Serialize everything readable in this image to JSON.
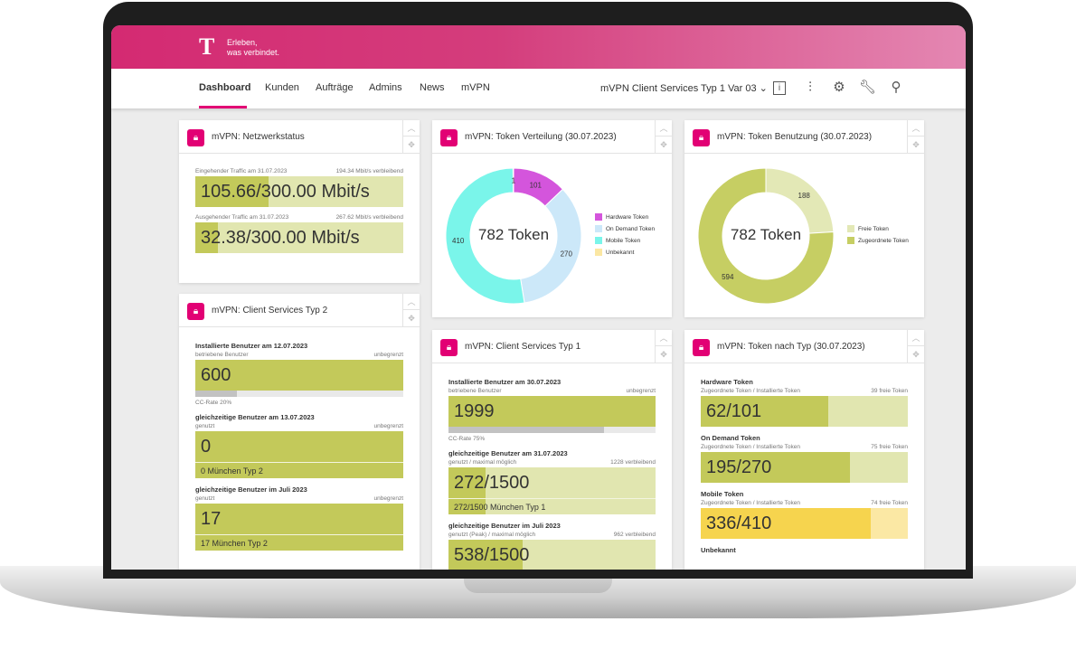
{
  "header": {
    "logo": "T",
    "slogan_line1": "Erleben,",
    "slogan_line2": "was verbindet."
  },
  "nav": {
    "items": [
      "Dashboard",
      "Kunden",
      "Aufträge",
      "Admins",
      "News",
      "mVPN"
    ],
    "active": "Dashboard",
    "selector": "mVPN Client Services Typ 1 Var 03",
    "selector_icon": "chevron-down-icon",
    "icons": [
      "info-icon",
      "sliders-icon",
      "gear-icon",
      "wrench-icon",
      "user-icon"
    ]
  },
  "colors": {
    "brand": "#e20074",
    "bar_dark": "#c3c95a",
    "bar_light": "#e1e6b0",
    "yellow": "#f6d44e"
  },
  "netz": {
    "title": "mVPN: Netzwerkstatus",
    "bars": [
      {
        "title": "",
        "left": "Eingehender Traffic am 31.07.2023",
        "right": "194.34 Mbit/s verbleibend",
        "value": "105.66/300.00 Mbit/s",
        "fraction": 0.352
      },
      {
        "title": "",
        "left": "Ausgehender Traffic am 31.07.2023",
        "right": "267.62 Mbit/s verbleibend",
        "value": "32.38/300.00 Mbit/s",
        "fraction": 0.108
      }
    ]
  },
  "typ2": {
    "title": "mVPN: Client Services Typ 2",
    "bars": [
      {
        "title": "Installierte Benutzer am 12.07.2023",
        "left": "betriebene Benutzer",
        "right": "unbegrenzt",
        "value": "600",
        "fraction": 1,
        "progress": 0.2,
        "note": "CC-Rate 20%"
      },
      {
        "title": "gleichzeitige Benutzer am 13.07.2023",
        "left": "genutzt",
        "right": "unbegrenzt",
        "value": "0",
        "fraction": 1,
        "sub": "0 München Typ 2",
        "sub_fraction": 1
      },
      {
        "title": "gleichzeitige Benutzer im Juli 2023",
        "left": "genutzt",
        "right": "unbegrenzt",
        "value": "17",
        "fraction": 1,
        "sub": "17 München Typ 2",
        "sub_fraction": 1
      }
    ]
  },
  "typ1": {
    "title": "mVPN: Client Services Typ 1",
    "bars": [
      {
        "title": "Installierte Benutzer am 30.07.2023",
        "left": "betriebene Benutzer",
        "right": "unbegrenzt",
        "value": "1999",
        "fraction": 1,
        "progress": 0.75,
        "note": "CC-Rate 75%"
      },
      {
        "title": "gleichzeitige Benutzer am 31.07.2023",
        "left": "genutzt / maximal möglich",
        "right": "1228 verbleibend",
        "value": "272/1500",
        "fraction": 0.181,
        "sub": "272/1500 München Typ 1",
        "sub_fraction": 0.181
      },
      {
        "title": "gleichzeitige Benutzer im Juli 2023",
        "left": "genutzt (Peak) / maximal möglich",
        "right": "962 verbleibend",
        "value": "538/1500",
        "fraction": 0.359
      }
    ]
  },
  "nachtyp": {
    "title": "mVPN: Token nach Typ (30.07.2023)",
    "bars": [
      {
        "title": "Hardware Token",
        "left": "Zugeordnete Token / Installierte Token",
        "right": "39 freie Token",
        "value": "62/101",
        "fraction": 0.614
      },
      {
        "title": "On Demand Token",
        "left": "Zugeordnete Token / Installierte Token",
        "right": "75 freie Token",
        "value": "195/270",
        "fraction": 0.722
      },
      {
        "title": "Mobile Token",
        "left": "Zugeordnete Token / Installierte Token",
        "right": "74 freie Token",
        "value": "336/410",
        "fraction": 0.82,
        "yellow": true
      },
      {
        "title": "Unbekannt",
        "left": "",
        "right": "",
        "value": "",
        "fraction": 0
      }
    ]
  },
  "chart_data": [
    {
      "type": "pie",
      "title": "mVPN: Token Verteilung (30.07.2023)",
      "center_label": "782 Token",
      "categories": [
        "Hardware Token",
        "On Demand Token",
        "Mobile Token",
        "Unbekannt"
      ],
      "values": [
        101,
        270,
        410,
        1
      ],
      "colors": [
        "#d455dc",
        "#cce8f9",
        "#7af5ea",
        "#fbe7a3"
      ],
      "legend": "right"
    },
    {
      "type": "pie",
      "title": "mVPN: Token Benutzung (30.07.2023)",
      "center_label": "782 Token",
      "categories": [
        "Freie Token",
        "Zugeordnete Token"
      ],
      "values": [
        188,
        594
      ],
      "colors": [
        "#e3e8b6",
        "#c6ce63"
      ],
      "legend": "right"
    }
  ]
}
